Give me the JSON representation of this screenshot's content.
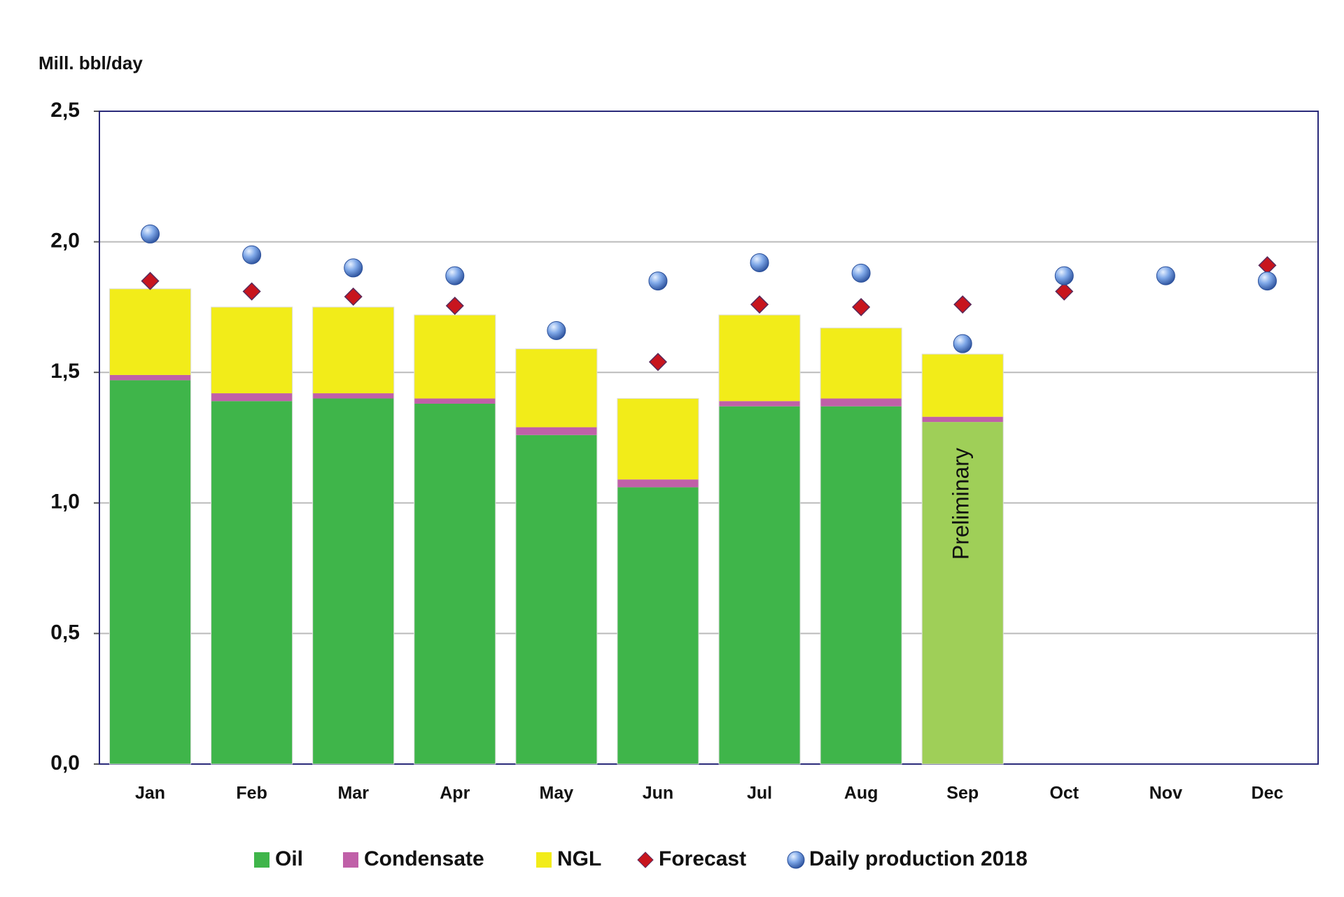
{
  "chart_data": {
    "type": "bar",
    "y_axis_label": "Mill. bbl/day",
    "categories": [
      "Jan",
      "Feb",
      "Mar",
      "Apr",
      "May",
      "Jun",
      "Jul",
      "Aug",
      "Sep",
      "Oct",
      "Nov",
      "Dec"
    ],
    "series": [
      {
        "name": "Oil",
        "type": "bar",
        "color": "#3fb54a",
        "colors": [
          "#3fb54a",
          "#3fb54a",
          "#3fb54a",
          "#3fb54a",
          "#3fb54a",
          "#3fb54a",
          "#3fb54a",
          "#3fb54a",
          "#9fcf58",
          "#3fb54a",
          "#3fb54a",
          "#3fb54a"
        ],
        "values": [
          1.47,
          1.39,
          1.4,
          1.38,
          1.26,
          1.06,
          1.37,
          1.37,
          1.31,
          null,
          null,
          null
        ]
      },
      {
        "name": "Condensate",
        "type": "bar",
        "color": "#c060a8",
        "values": [
          0.02,
          0.03,
          0.02,
          0.02,
          0.03,
          0.03,
          0.02,
          0.03,
          0.02,
          null,
          null,
          null
        ]
      },
      {
        "name": "NGL",
        "type": "bar",
        "color": "#f2ec19",
        "values": [
          0.33,
          0.33,
          0.33,
          0.32,
          0.3,
          0.31,
          0.33,
          0.27,
          0.24,
          null,
          null,
          null
        ]
      },
      {
        "name": "Forecast",
        "type": "scatter",
        "marker": "diamond",
        "color": "#c8151e",
        "values": [
          1.85,
          1.81,
          1.79,
          1.755,
          null,
          1.54,
          1.76,
          1.75,
          1.76,
          1.81,
          1.87,
          1.91
        ]
      },
      {
        "name": "Daily production 2018",
        "type": "scatter",
        "marker": "circle",
        "color": "#4f7fd0",
        "values": [
          2.03,
          1.95,
          1.9,
          1.87,
          1.66,
          1.85,
          1.92,
          1.88,
          1.61,
          1.87,
          1.87,
          1.85
        ]
      }
    ],
    "annotations": [
      {
        "text": "Preliminary",
        "category": "Sep"
      }
    ],
    "ylim": [
      0,
      2.5
    ],
    "yticks": [
      {
        "value": 0,
        "label": "0,0"
      },
      {
        "value": 0.5,
        "label": "0,5"
      },
      {
        "value": 1,
        "label": "1,0"
      },
      {
        "value": 1.5,
        "label": "1,5"
      },
      {
        "value": 2,
        "label": "2,0"
      },
      {
        "value": 2.5,
        "label": "2,5"
      }
    ],
    "grid": true,
    "legend": "bottom"
  }
}
